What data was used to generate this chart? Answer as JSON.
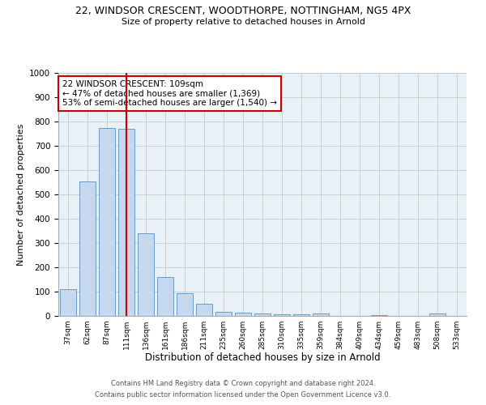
{
  "title1": "22, WINDSOR CRESCENT, WOODTHORPE, NOTTINGHAM, NG5 4PX",
  "title2": "Size of property relative to detached houses in Arnold",
  "xlabel": "Distribution of detached houses by size in Arnold",
  "ylabel": "Number of detached properties",
  "footer1": "Contains HM Land Registry data © Crown copyright and database right 2024.",
  "footer2": "Contains public sector information licensed under the Open Government Licence v3.0.",
  "categories": [
    "37sqm",
    "62sqm",
    "87sqm",
    "111sqm",
    "136sqm",
    "161sqm",
    "186sqm",
    "211sqm",
    "235sqm",
    "260sqm",
    "285sqm",
    "310sqm",
    "335sqm",
    "359sqm",
    "384sqm",
    "409sqm",
    "434sqm",
    "459sqm",
    "483sqm",
    "508sqm",
    "533sqm"
  ],
  "values": [
    110,
    555,
    775,
    770,
    340,
    160,
    95,
    50,
    18,
    12,
    10,
    8,
    8,
    10,
    0,
    0,
    5,
    0,
    0,
    10,
    0
  ],
  "bar_color": "#c5d8ed",
  "bar_edge_color": "#5a8fc0",
  "highlight_index": 3,
  "highlight_line_color": "#cc0000",
  "annotation_text": "22 WINDSOR CRESCENT: 109sqm\n← 47% of detached houses are smaller (1,369)\n53% of semi-detached houses are larger (1,540) →",
  "annotation_box_color": "#ffffff",
  "annotation_box_edge": "#cc0000",
  "ylim": [
    0,
    1000
  ],
  "yticks": [
    0,
    100,
    200,
    300,
    400,
    500,
    600,
    700,
    800,
    900,
    1000
  ],
  "background_color": "#ffffff",
  "grid_color": "#cccccc",
  "axes_bg_color": "#e8f0f8"
}
